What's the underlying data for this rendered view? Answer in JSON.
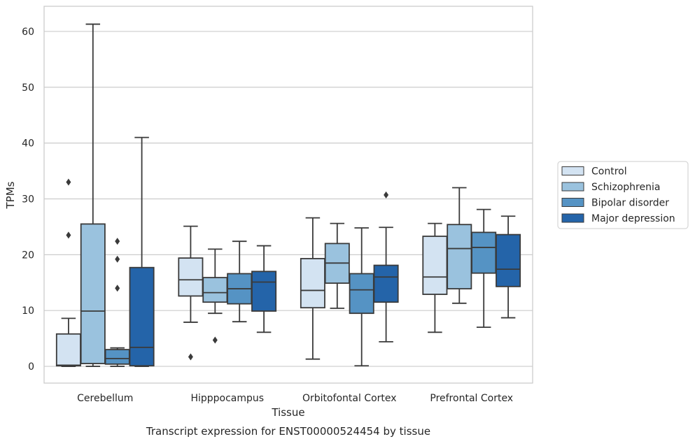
{
  "chart_data": {
    "type": "box",
    "title": "Transcript expression for ENST00000524454 by tissue",
    "xlabel": "Tissue",
    "ylabel": "TPMs",
    "ylim": [
      -3,
      64.5
    ],
    "yticks": [
      0,
      10,
      20,
      30,
      40,
      50,
      60
    ],
    "grid": true,
    "legend_position": "right",
    "categories": [
      "Cerebellum",
      "Hipppocampus",
      "Orbitofontal Cortex",
      "Prefrontal Cortex"
    ],
    "series": [
      {
        "name": "Control",
        "color": "#d3e3f2",
        "boxes": [
          {
            "whislo": 0,
            "q1": 0.1,
            "med": 0.2,
            "q3": 5.8,
            "whishi": 8.6,
            "fliers": [
              33,
              23.5
            ]
          },
          {
            "whislo": 7.9,
            "q1": 12.6,
            "med": 15.5,
            "q3": 19.4,
            "whishi": 25.1,
            "fliers": [
              1.7
            ]
          },
          {
            "whislo": 1.3,
            "q1": 10.5,
            "med": 13.6,
            "q3": 19.3,
            "whishi": 26.6,
            "fliers": []
          },
          {
            "whislo": 6.1,
            "q1": 12.9,
            "med": 16.0,
            "q3": 23.3,
            "whishi": 25.6,
            "fliers": []
          }
        ]
      },
      {
        "name": "Schizophrenia",
        "color": "#9ac2de",
        "boxes": [
          {
            "whislo": 0,
            "q1": 0.5,
            "med": 9.9,
            "q3": 25.5,
            "whishi": 61.3,
            "fliers": []
          },
          {
            "whislo": 9.5,
            "q1": 11.5,
            "med": 13.2,
            "q3": 15.9,
            "whishi": 21.0,
            "fliers": [
              4.7
            ]
          },
          {
            "whislo": 10.4,
            "q1": 14.9,
            "med": 18.5,
            "q3": 22.0,
            "whishi": 25.6,
            "fliers": []
          },
          {
            "whislo": 11.3,
            "q1": 13.9,
            "med": 21.1,
            "q3": 25.4,
            "whishi": 32.0,
            "fliers": []
          }
        ]
      },
      {
        "name": "Bipolar disorder",
        "color": "#5593c4",
        "boxes": [
          {
            "whislo": 0,
            "q1": 0.4,
            "med": 1.4,
            "q3": 3.0,
            "whishi": 3.3,
            "fliers": [
              22.4,
              19.2,
              14
            ]
          },
          {
            "whislo": 8.0,
            "q1": 11.2,
            "med": 13.9,
            "q3": 16.6,
            "whishi": 22.4,
            "fliers": []
          },
          {
            "whislo": 0.1,
            "q1": 9.5,
            "med": 13.7,
            "q3": 16.6,
            "whishi": 24.8,
            "fliers": []
          },
          {
            "whislo": 7.0,
            "q1": 16.7,
            "med": 21.3,
            "q3": 24.0,
            "whishi": 28.1,
            "fliers": []
          }
        ]
      },
      {
        "name": "Major depression",
        "color": "#2464a9",
        "boxes": [
          {
            "whislo": 0,
            "q1": 0.1,
            "med": 3.4,
            "q3": 17.7,
            "whishi": 41.0,
            "fliers": []
          },
          {
            "whislo": 6.1,
            "q1": 9.9,
            "med": 15.1,
            "q3": 17.0,
            "whishi": 21.6,
            "fliers": []
          },
          {
            "whislo": 4.4,
            "q1": 11.5,
            "med": 16.0,
            "q3": 18.1,
            "whishi": 24.9,
            "fliers": [
              30.7
            ]
          },
          {
            "whislo": 8.7,
            "q1": 14.3,
            "med": 17.4,
            "q3": 23.6,
            "whishi": 26.9,
            "fliers": []
          }
        ]
      }
    ]
  }
}
